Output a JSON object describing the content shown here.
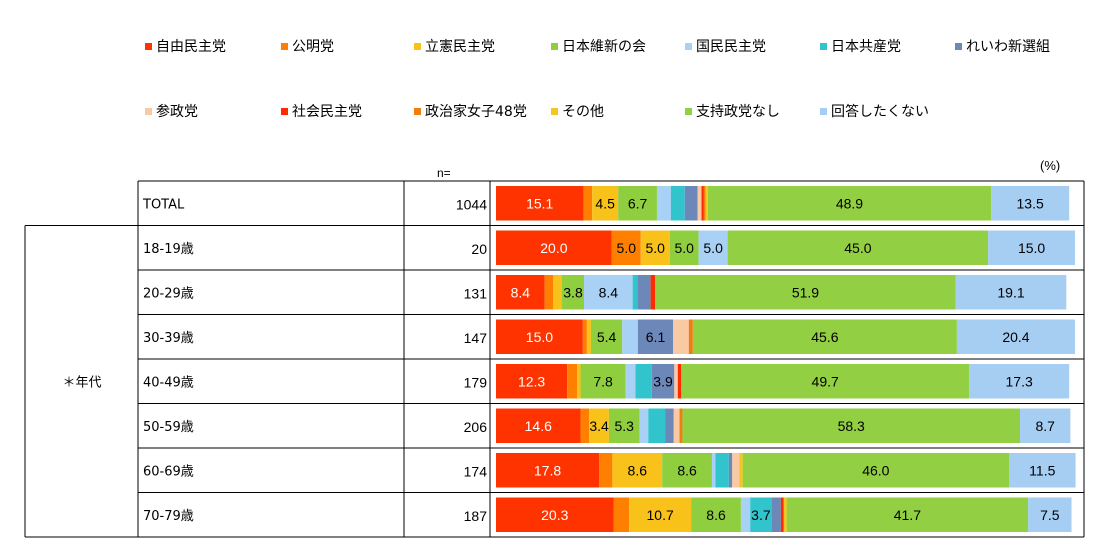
{
  "legend": [
    {
      "label": "自由民主党",
      "color": "#ff3300"
    },
    {
      "label": "公明党",
      "color": "#ff8000"
    },
    {
      "label": "立憲民主党",
      "color": "#f8c21b"
    },
    {
      "label": "日本維新の会",
      "color": "#8fce3f"
    },
    {
      "label": "国民民主党",
      "color": "#a9d1f5"
    },
    {
      "label": "日本共産党",
      "color": "#31c4cc"
    },
    {
      "label": "れいわ新選組",
      "color": "#6c88b8"
    },
    {
      "label": "参政党",
      "color": "#f9c9a4"
    },
    {
      "label": "社会民主党",
      "color": "#ff2a00"
    },
    {
      "label": "政治家女子48党",
      "color": "#f07c14"
    },
    {
      "label": "その他",
      "color": "#f7c61e"
    },
    {
      "label": "支持政党なし",
      "color": "#92cf42"
    },
    {
      "label": "回答したくない",
      "color": "#a6cdf2"
    }
  ],
  "unit_label": "(%)",
  "n_header": "n=",
  "group_label": "＊年代",
  "chart_data": {
    "type": "bar",
    "orientation": "horizontal",
    "stacked": true,
    "normalized": "100%",
    "xlim": [
      0,
      100
    ],
    "legend_position": "top",
    "grid": false,
    "categories": [
      "TOTAL",
      "18-19歳",
      "20-29歳",
      "30-39歳",
      "40-49歳",
      "50-59歳",
      "60-69歳",
      "70-79歳"
    ],
    "n": [
      "1044",
      "20",
      "131",
      "147",
      "179",
      "206",
      "174",
      "187"
    ],
    "series": [
      {
        "name": "自由民主党",
        "values": [
          15.1,
          20.0,
          8.4,
          15.0,
          12.3,
          14.6,
          17.8,
          20.3
        ],
        "labels": [
          "15.1",
          "20.0",
          "8.4",
          "15.0",
          "12.3",
          "14.6",
          "17.8",
          "20.3"
        ]
      },
      {
        "name": "公明党",
        "values": [
          1.5,
          5.0,
          1.5,
          0.7,
          1.7,
          1.5,
          2.3,
          2.7
        ],
        "labels": [
          "",
          "5.0",
          "",
          "",
          "",
          "",
          "",
          ""
        ]
      },
      {
        "name": "立憲民主党",
        "values": [
          4.5,
          5.0,
          1.5,
          0.7,
          0.6,
          3.4,
          8.6,
          10.7
        ],
        "labels": [
          "4.5",
          "5.0",
          "",
          "",
          "",
          "3.4",
          "8.6",
          "10.7"
        ]
      },
      {
        "name": "日本維新の会",
        "values": [
          6.7,
          5.0,
          3.8,
          5.4,
          7.8,
          5.3,
          8.6,
          8.6
        ],
        "labels": [
          "6.7",
          "5.0",
          "3.8",
          "5.4",
          "7.8",
          "5.3",
          "8.6",
          "8.6"
        ]
      },
      {
        "name": "国民民主党",
        "values": [
          2.4,
          5.0,
          8.4,
          2.7,
          1.7,
          1.5,
          0.6,
          1.6
        ],
        "labels": [
          "",
          "5.0",
          "8.4",
          "",
          "",
          "",
          "",
          ""
        ]
      },
      {
        "name": "日本共産党",
        "values": [
          2.4,
          0,
          0.8,
          0,
          2.8,
          2.9,
          2.3,
          3.7
        ],
        "labels": [
          "",
          "",
          "",
          "",
          "",
          "",
          "",
          "3.7"
        ]
      },
      {
        "name": "れいわ新選組",
        "values": [
          2.2,
          0,
          2.3,
          6.1,
          3.9,
          1.5,
          0.6,
          1.6
        ],
        "labels": [
          "",
          "",
          "",
          "6.1",
          "3.9",
          "",
          "",
          ""
        ]
      },
      {
        "name": "参政党",
        "values": [
          0.7,
          0,
          0,
          2.7,
          0.6,
          1.0,
          1.2,
          0
        ],
        "labels": [
          "",
          "",
          "",
          "",
          "",
          "",
          "",
          ""
        ]
      },
      {
        "name": "社会民主党",
        "values": [
          0.4,
          0,
          0.8,
          0,
          0.6,
          0,
          0,
          0.5
        ],
        "labels": [
          "",
          "",
          "",
          "",
          "",
          "",
          "",
          ""
        ]
      },
      {
        "name": "政治家女子48党",
        "values": [
          0.3,
          0,
          0,
          0.7,
          0,
          0.5,
          0,
          0
        ],
        "labels": [
          "",
          "",
          "",
          "",
          "",
          "",
          "",
          ""
        ]
      },
      {
        "name": "その他",
        "values": [
          0.4,
          0,
          0,
          0,
          0,
          0,
          0.6,
          0.5
        ],
        "labels": [
          "",
          "",
          "",
          "",
          "",
          "",
          "",
          ""
        ]
      },
      {
        "name": "支持政党なし",
        "values": [
          48.9,
          45.0,
          51.9,
          45.6,
          49.7,
          58.3,
          46.0,
          41.7
        ],
        "labels": [
          "48.9",
          "45.0",
          "51.9",
          "45.6",
          "49.7",
          "58.3",
          "46.0",
          "41.7"
        ]
      },
      {
        "name": "回答したくない",
        "values": [
          13.5,
          15.0,
          19.1,
          20.4,
          17.3,
          8.7,
          11.5,
          7.5
        ],
        "labels": [
          "13.5",
          "15.0",
          "19.1",
          "20.4",
          "17.3",
          "8.7",
          "11.5",
          "7.5"
        ]
      }
    ]
  }
}
